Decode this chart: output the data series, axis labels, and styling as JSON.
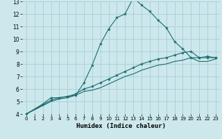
{
  "xlabel": "Humidex (Indice chaleur)",
  "bg_color": "#cce8ec",
  "grid_color": "#aacdd4",
  "line_color": "#1a6b6e",
  "xlim": [
    -0.5,
    23.5
  ],
  "ylim": [
    4,
    13
  ],
  "xticks": [
    0,
    1,
    2,
    3,
    4,
    5,
    6,
    7,
    8,
    9,
    10,
    11,
    12,
    13,
    14,
    15,
    16,
    17,
    18,
    19,
    20,
    21,
    22,
    23
  ],
  "yticks": [
    4,
    5,
    6,
    7,
    8,
    9,
    10,
    11,
    12,
    13
  ],
  "series1_x": [
    0,
    2,
    3,
    4,
    5,
    6,
    7,
    8,
    9,
    10,
    11,
    12,
    13,
    14,
    15,
    16,
    17,
    18,
    19,
    20,
    21,
    22,
    23
  ],
  "series1_y": [
    4.0,
    4.8,
    5.3,
    5.3,
    5.4,
    5.5,
    6.5,
    7.9,
    9.6,
    10.8,
    11.7,
    12.0,
    13.3,
    12.7,
    12.2,
    11.5,
    10.9,
    9.8,
    9.2,
    8.5,
    8.5,
    8.6,
    8.5
  ],
  "series2_x": [
    0,
    3,
    4,
    5,
    6,
    7,
    8,
    9,
    10,
    11,
    12,
    13,
    14,
    15,
    16,
    17,
    18,
    19,
    20,
    21,
    22,
    23
  ],
  "series2_y": [
    4.0,
    5.1,
    5.3,
    5.4,
    5.6,
    6.0,
    6.2,
    6.5,
    6.8,
    7.1,
    7.4,
    7.7,
    8.0,
    8.2,
    8.4,
    8.5,
    8.7,
    8.9,
    9.0,
    8.5,
    8.5,
    8.5
  ],
  "series3_x": [
    0,
    3,
    4,
    5,
    6,
    7,
    8,
    9,
    10,
    11,
    12,
    13,
    14,
    15,
    16,
    17,
    18,
    19,
    20,
    21,
    22,
    23
  ],
  "series3_y": [
    4.0,
    5.0,
    5.2,
    5.3,
    5.5,
    5.8,
    5.9,
    6.1,
    6.4,
    6.7,
    7.0,
    7.2,
    7.5,
    7.7,
    7.9,
    8.0,
    8.2,
    8.3,
    8.5,
    8.2,
    8.2,
    8.4
  ],
  "tick_fontsize": 5.5,
  "xlabel_fontsize": 6.5,
  "lw": 0.8,
  "marker_size": 3.0
}
